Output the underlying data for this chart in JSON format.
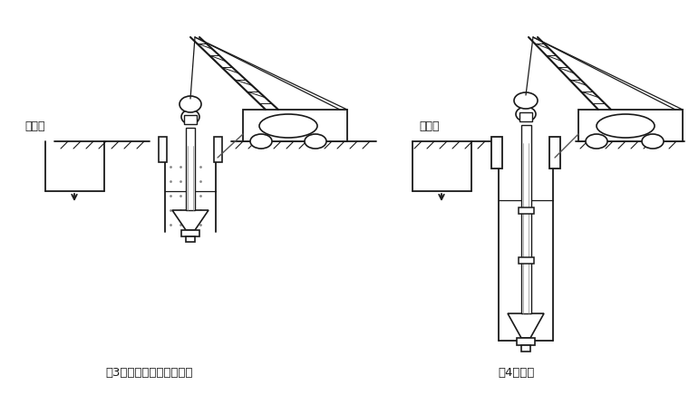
{
  "title3": "（3）钻机就位、泥浆制备",
  "title4": "（4）钻进",
  "label3": "泥浆池",
  "label4": "泥浆池",
  "bg_color": "#ffffff",
  "line_color": "#1a1a1a",
  "font_size": 9,
  "fig_width": 7.6,
  "fig_height": 4.36,
  "dpi": 100
}
